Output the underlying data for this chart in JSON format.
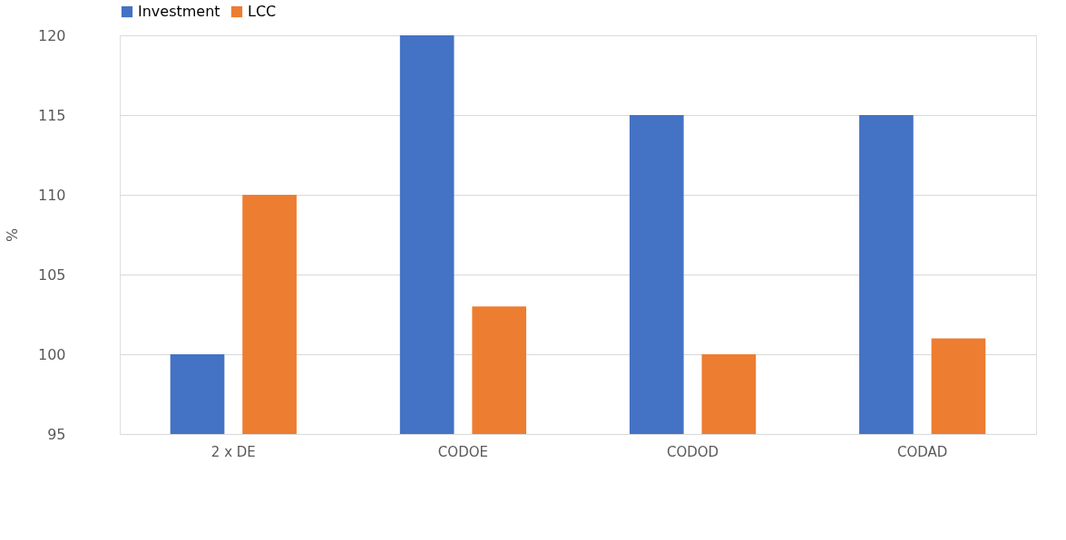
{
  "chart_data": {
    "type": "bar",
    "ylabel": "%",
    "categories": [
      "2 x DE",
      "CODOE",
      "CODOD",
      "CODAD"
    ],
    "series": [
      {
        "name": "Investment",
        "color": "#4472c4",
        "values": [
          100,
          120,
          115,
          115
        ]
      },
      {
        "name": "LCC",
        "color": "#ed7d31",
        "values": [
          110,
          103,
          100,
          101
        ]
      }
    ],
    "ylim": [
      95,
      120
    ],
    "yticks": [
      95,
      100,
      105,
      110,
      115,
      120
    ],
    "grid": "y",
    "legend": "top"
  }
}
